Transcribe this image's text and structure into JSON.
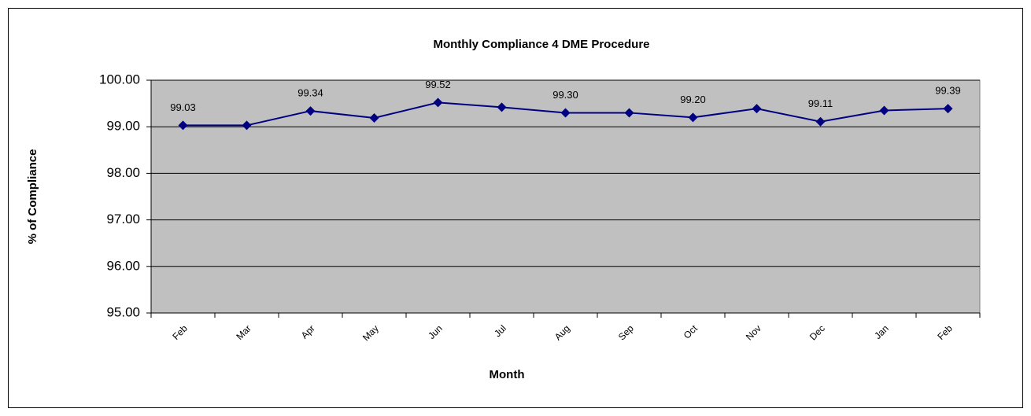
{
  "chart_data": {
    "type": "line",
    "title": "Monthly Compliance 4 DME Procedure",
    "x_label": "Month",
    "y_label": "% of Compliance",
    "categories": [
      "Feb",
      "Mar",
      "Apr",
      "May",
      "Jun",
      "Jul",
      "Aug",
      "Sep",
      "Oct",
      "Nov",
      "Dec",
      "Jan",
      "Feb"
    ],
    "series": [
      {
        "name": "Compliance",
        "color": "#000080",
        "values": [
          99.03,
          99.03,
          99.34,
          99.19,
          99.52,
          99.42,
          99.3,
          99.3,
          99.2,
          99.39,
          99.11,
          99.35,
          99.39
        ],
        "value_labels": [
          "99.03",
          null,
          "99.34",
          null,
          "99.52",
          null,
          "99.30",
          null,
          "99.20",
          null,
          "99.11",
          null,
          "99.39"
        ]
      }
    ],
    "ylim": [
      95,
      100
    ],
    "yticks": [
      {
        "value": 95,
        "label": "95.00"
      },
      {
        "value": 96,
        "label": "96.00"
      },
      {
        "value": 97,
        "label": "97.00"
      },
      {
        "value": 98,
        "label": "98.00"
      },
      {
        "value": 99,
        "label": "99.00"
      },
      {
        "value": 100,
        "label": "100.00"
      }
    ],
    "grid": true,
    "plot_background": "#c0c0c0"
  }
}
